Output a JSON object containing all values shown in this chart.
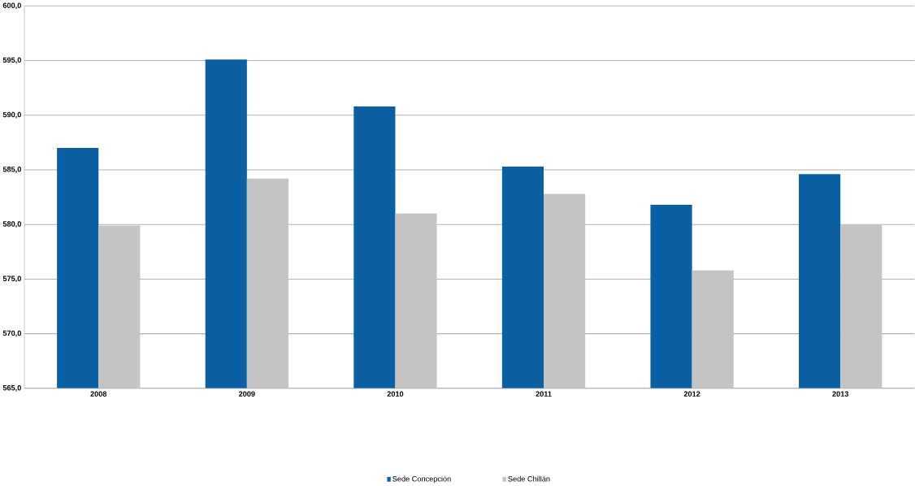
{
  "chart_data": {
    "type": "bar",
    "categories": [
      "2008",
      "2009",
      "2010",
      "2011",
      "2012",
      "2013"
    ],
    "series": [
      {
        "name": "Sede Concepción",
        "color": "#0b5fa3",
        "values": [
          587.0,
          595.1,
          590.8,
          585.3,
          581.8,
          584.6
        ]
      },
      {
        "name": "Sede Chillán",
        "color": "#c4c4c4",
        "values": [
          579.9,
          584.2,
          581.0,
          582.8,
          575.8,
          580.0
        ]
      }
    ],
    "ylim": [
      565,
      600
    ],
    "yticks": [
      {
        "value": 565,
        "label": "565,0"
      },
      {
        "value": 570,
        "label": "570,0"
      },
      {
        "value": 575,
        "label": "575,0"
      },
      {
        "value": 580,
        "label": "580,0"
      },
      {
        "value": 585,
        "label": "585,0"
      },
      {
        "value": 590,
        "label": "590,0"
      },
      {
        "value": 595,
        "label": "595,0"
      },
      {
        "value": 600,
        "label": "600,0"
      }
    ],
    "grid": "y",
    "legend": "bottom"
  }
}
